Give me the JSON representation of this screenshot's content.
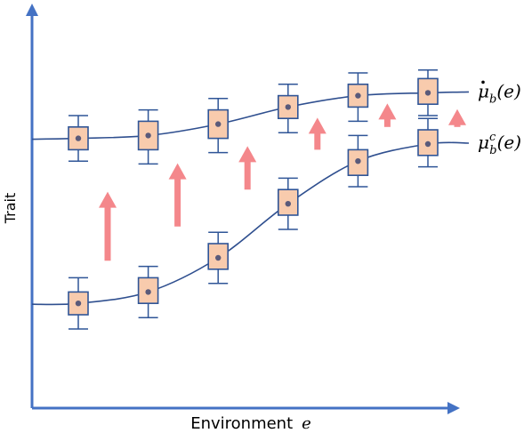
{
  "axes": {
    "x_label": "Environment",
    "x_var": "e",
    "y_label": "Trait"
  },
  "curves": [
    {
      "id": "upper",
      "label_base": "μ",
      "label_sub": "b",
      "label_sup": "",
      "label_dot": true,
      "label_arg": "(e)",
      "points": [
        {
          "median": 0.82,
          "q1": 0.78,
          "q3": 0.86,
          "low": 0.74,
          "high": 0.9
        },
        {
          "median": 0.83,
          "q1": 0.78,
          "q3": 0.88,
          "low": 0.73,
          "high": 0.92
        },
        {
          "median": 0.87,
          "q1": 0.82,
          "q3": 0.92,
          "low": 0.77,
          "high": 0.96
        },
        {
          "median": 0.93,
          "q1": 0.89,
          "q3": 0.97,
          "low": 0.84,
          "high": 1.01
        },
        {
          "median": 0.97,
          "q1": 0.93,
          "q3": 1.01,
          "low": 0.88,
          "high": 1.05
        },
        {
          "median": 0.98,
          "q1": 0.94,
          "q3": 1.03,
          "low": 0.9,
          "high": 1.06
        }
      ]
    },
    {
      "id": "lower",
      "label_base": "μ",
      "label_sub": "b",
      "label_sup": "c",
      "label_dot": false,
      "label_arg": "(e)",
      "points": [
        {
          "median": 0.24,
          "q1": 0.2,
          "q3": 0.28,
          "low": 0.15,
          "high": 0.33
        },
        {
          "median": 0.28,
          "q1": 0.24,
          "q3": 0.33,
          "low": 0.19,
          "high": 0.37
        },
        {
          "median": 0.4,
          "q1": 0.36,
          "q3": 0.45,
          "low": 0.31,
          "high": 0.49
        },
        {
          "median": 0.59,
          "q1": 0.55,
          "q3": 0.64,
          "low": 0.5,
          "high": 0.68
        },
        {
          "median": 0.74,
          "q1": 0.69,
          "q3": 0.78,
          "low": 0.65,
          "high": 0.83
        },
        {
          "median": 0.8,
          "q1": 0.76,
          "q3": 0.85,
          "low": 0.72,
          "high": 0.89
        }
      ]
    }
  ],
  "arrows": [
    {
      "from": 0.39,
      "to": 0.62
    },
    {
      "from": 0.51,
      "to": 0.72
    },
    {
      "from": 0.64,
      "to": 0.78
    },
    {
      "from": 0.78,
      "to": 0.88
    },
    {
      "from": 0.86,
      "to": 0.93
    },
    {
      "from": 0.86,
      "to": 0.91
    }
  ],
  "colors": {
    "axis": "#4472C4",
    "curve": "#2F4F8F",
    "box_fill": "#F8CBAD",
    "box_stroke": "#2F5597",
    "whisker": "#2F5597",
    "median_dot": "#5A5A7A",
    "arrow": "#F4878B",
    "text": "#000000"
  }
}
